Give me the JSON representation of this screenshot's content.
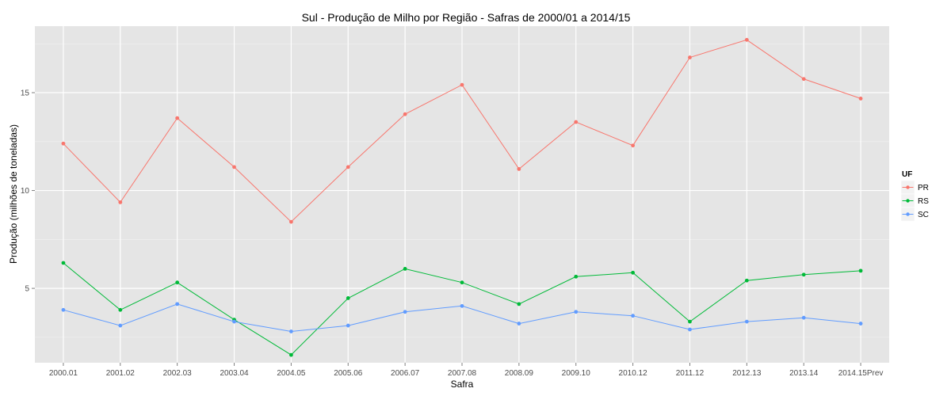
{
  "chart_data": {
    "type": "line",
    "title": "Sul  - Produção de Milho por Região - Safras de 2000/01 a 2014/15",
    "xlabel": "Safra",
    "ylabel": "Produção (milhões de toneladas)",
    "categories": [
      "2000.01",
      "2001.02",
      "2002.03",
      "2003.04",
      "2004.05",
      "2005.06",
      "2006.07",
      "2007.08",
      "2008.09",
      "2009.10",
      "2010.12",
      "2011.12",
      "2012.13",
      "2013.14",
      "2014.15Prev"
    ],
    "yticks": [
      5,
      10,
      15
    ],
    "ylim": [
      1.2,
      18.4
    ],
    "grid": true,
    "legend": {
      "title": "UF",
      "position": "right"
    },
    "series": [
      {
        "name": "PR",
        "color": "#F8766D",
        "values": [
          12.4,
          9.4,
          13.7,
          11.2,
          8.4,
          11.2,
          13.9,
          15.4,
          11.1,
          13.5,
          12.3,
          16.8,
          17.7,
          15.7,
          14.7
        ]
      },
      {
        "name": "RS",
        "color": "#00BA38",
        "values": [
          6.3,
          3.9,
          5.3,
          3.4,
          1.6,
          4.5,
          6.0,
          5.3,
          4.2,
          5.6,
          5.8,
          3.3,
          5.4,
          5.7,
          5.9
        ]
      },
      {
        "name": "SC",
        "color": "#619CFF",
        "values": [
          3.9,
          3.1,
          4.2,
          3.3,
          2.8,
          3.1,
          3.8,
          4.1,
          3.2,
          3.8,
          3.6,
          2.9,
          3.3,
          3.5,
          3.2
        ]
      }
    ]
  }
}
